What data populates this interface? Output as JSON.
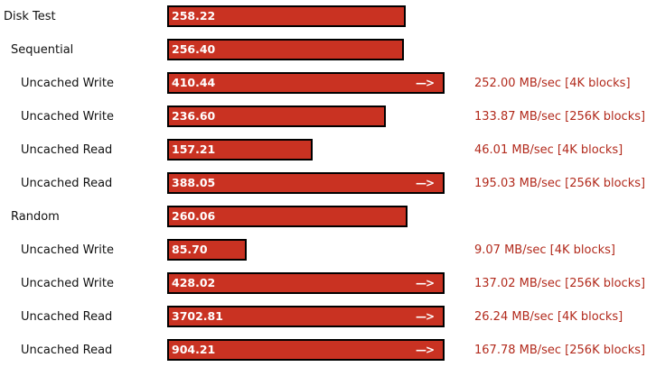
{
  "chart_data": {
    "type": "bar",
    "orientation": "horizontal",
    "overflow_marker": "—>",
    "colors": {
      "bar": "#c93222",
      "bar_border": "#000000",
      "detail_text": "#b22a1c"
    },
    "rows": [
      {
        "label": "Disk Test",
        "level": 0,
        "value": 258.22,
        "value_label": "258.22",
        "overflow": false,
        "detail": ""
      },
      {
        "label": "Sequential",
        "level": 1,
        "value": 256.4,
        "value_label": "256.40",
        "overflow": false,
        "detail": ""
      },
      {
        "label": "Uncached Write",
        "level": 2,
        "value": 410.44,
        "value_label": "410.44",
        "overflow": true,
        "detail": "252.00 MB/sec [4K blocks]"
      },
      {
        "label": "Uncached Write",
        "level": 2,
        "value": 236.6,
        "value_label": "236.60",
        "overflow": false,
        "detail": "133.87 MB/sec [256K blocks]"
      },
      {
        "label": "Uncached Read",
        "level": 2,
        "value": 157.21,
        "value_label": "157.21",
        "overflow": false,
        "detail": "46.01 MB/sec [4K blocks]"
      },
      {
        "label": "Uncached Read",
        "level": 2,
        "value": 388.05,
        "value_label": "388.05",
        "overflow": true,
        "detail": "195.03 MB/sec [256K blocks]"
      },
      {
        "label": "Random",
        "level": 1,
        "value": 260.06,
        "value_label": "260.06",
        "overflow": false,
        "detail": ""
      },
      {
        "label": "Uncached Write",
        "level": 2,
        "value": 85.7,
        "value_label": "85.70",
        "overflow": false,
        "detail": "9.07 MB/sec [4K blocks]"
      },
      {
        "label": "Uncached Write",
        "level": 2,
        "value": 428.02,
        "value_label": "428.02",
        "overflow": true,
        "detail": "137.02 MB/sec [256K blocks]"
      },
      {
        "label": "Uncached Read",
        "level": 2,
        "value": 3702.81,
        "value_label": "3702.81",
        "overflow": true,
        "detail": "26.24 MB/sec [4K blocks]"
      },
      {
        "label": "Uncached Read",
        "level": 2,
        "value": 904.21,
        "value_label": "904.21",
        "overflow": true,
        "detail": "167.78 MB/sec [256K blocks]"
      }
    ]
  }
}
